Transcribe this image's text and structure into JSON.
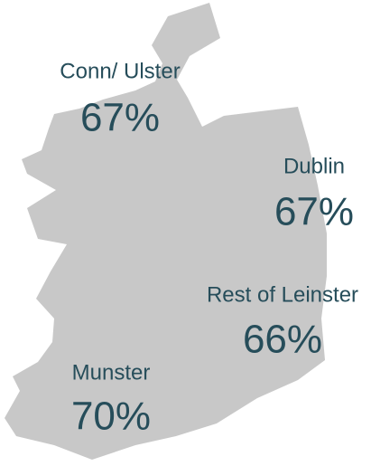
{
  "regions": [
    {
      "name": "Conn/ Ulster",
      "value": "67%"
    },
    {
      "name": "Dublin",
      "value": "67%"
    },
    {
      "name": "Rest of Leinster",
      "value": "66%"
    },
    {
      "name": "Munster",
      "value": "70%"
    }
  ]
}
